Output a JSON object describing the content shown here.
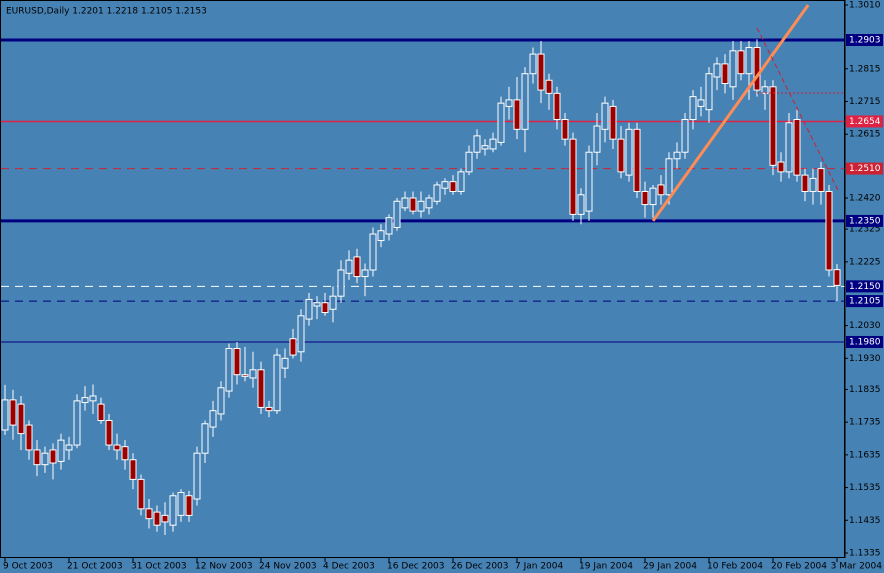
{
  "chart_data": {
    "type": "candlestick",
    "title": "EURUSD,Daily  1.2201 1.2218 1.2105 1.2153",
    "categories": [
      "9 Oct 2003",
      null,
      null,
      null,
      null,
      null,
      null,
      null,
      "21 Oct 2003",
      null,
      null,
      null,
      null,
      null,
      null,
      null,
      "31 Oct 2003",
      null,
      null,
      null,
      null,
      null,
      null,
      null,
      "12 Nov 2003",
      null,
      null,
      null,
      null,
      null,
      null,
      null,
      "24 Nov 2003",
      null,
      null,
      null,
      null,
      null,
      null,
      null,
      "4 Dec 2003",
      null,
      null,
      null,
      null,
      null,
      null,
      null,
      "16 Dec 2003",
      null,
      null,
      null,
      null,
      null,
      null,
      null,
      "26 Dec 2003",
      null,
      null,
      null,
      null,
      null,
      null,
      null,
      "7 Jan 2004",
      null,
      null,
      null,
      null,
      null,
      null,
      null,
      "19 Jan 2004",
      null,
      null,
      null,
      null,
      null,
      null,
      null,
      "29 Jan 2004",
      null,
      null,
      null,
      null,
      null,
      null,
      null,
      "10 Feb 2004",
      null,
      null,
      null,
      null,
      null,
      null,
      null,
      "20 Feb 2004",
      null,
      null,
      null,
      null,
      null,
      null,
      null,
      "3 Mar 2004"
    ],
    "open": [
      1.1711,
      1.1803,
      1.179,
      1.1726,
      1.165,
      1.1605,
      1.165,
      1.1615,
      1.165,
      1.1665,
      1.1795,
      1.18,
      1.179,
      1.174,
      1.1665,
      1.166,
      1.162,
      1.156,
      1.147,
      1.146,
      1.145,
      1.142,
      1.145,
      1.151,
      1.15,
      1.164,
      1.172,
      1.176,
      1.183,
      1.196,
      1.188,
      1.187,
      1.1895,
      1.178,
      1.177,
      1.19,
      1.199,
      1.195,
      1.205,
      1.209,
      1.21,
      1.208,
      1.212,
      1.219,
      1.224,
      1.218,
      1.22,
      1.229,
      1.231,
      1.233,
      1.239,
      1.242,
      1.238,
      1.239,
      1.241,
      1.245,
      1.247,
      1.244,
      1.25,
      1.256,
      1.257,
      1.257,
      1.259,
      1.27,
      1.272,
      1.263,
      1.28,
      1.286,
      1.278,
      1.274,
      1.266,
      1.26,
      1.237,
      1.238,
      1.256,
      1.263,
      1.27,
      1.26,
      1.249,
      1.263,
      1.244,
      1.24,
      1.246,
      1.243,
      1.254,
      1.256,
      1.266,
      1.27,
      1.269,
      1.279,
      1.283,
      1.276,
      1.287,
      1.28,
      1.288,
      1.274,
      1.276,
      1.253,
      1.25,
      1.266,
      1.249,
      1.244,
      1.251,
      1.244,
      1.2201
    ],
    "high": [
      1.1849,
      1.1834,
      1.1815,
      1.174,
      1.168,
      1.166,
      1.167,
      1.17,
      1.169,
      1.182,
      1.1845,
      1.185,
      1.181,
      1.176,
      1.17,
      1.168,
      1.164,
      1.1575,
      1.15,
      1.148,
      1.149,
      1.152,
      1.153,
      1.1525,
      1.166,
      1.174,
      1.18,
      1.186,
      1.1975,
      1.198,
      1.1965,
      1.195,
      1.192,
      1.18,
      1.196,
      1.196,
      1.202,
      1.208,
      1.213,
      1.212,
      1.213,
      1.215,
      1.223,
      1.226,
      1.2265,
      1.222,
      1.233,
      1.234,
      1.237,
      1.242,
      1.244,
      1.244,
      1.244,
      1.243,
      1.247,
      1.248,
      1.249,
      1.251,
      1.258,
      1.263,
      1.26,
      1.262,
      1.273,
      1.276,
      1.279,
      1.282,
      1.288,
      1.29,
      1.28,
      1.276,
      1.268,
      1.262,
      1.245,
      1.258,
      1.268,
      1.273,
      1.272,
      1.264,
      1.265,
      1.265,
      1.247,
      1.246,
      1.249,
      1.256,
      1.259,
      1.268,
      1.275,
      1.276,
      1.282,
      1.285,
      1.286,
      1.29,
      1.29,
      1.29,
      1.2905,
      1.278,
      1.278,
      1.256,
      1.268,
      1.269,
      1.251,
      1.251,
      1.253,
      1.246,
      1.2218
    ],
    "low": [
      1.1696,
      1.1681,
      1.165,
      1.162,
      1.157,
      1.158,
      1.156,
      1.159,
      1.162,
      1.1655,
      1.177,
      1.176,
      1.173,
      1.165,
      1.162,
      1.159,
      1.153,
      1.145,
      1.141,
      1.14,
      1.139,
      1.14,
      1.143,
      1.143,
      1.148,
      1.161,
      1.169,
      1.174,
      1.181,
      1.185,
      1.186,
      1.184,
      1.176,
      1.175,
      1.176,
      1.187,
      1.193,
      1.192,
      1.203,
      1.205,
      1.206,
      1.204,
      1.21,
      1.217,
      1.216,
      1.212,
      1.218,
      1.227,
      1.229,
      1.232,
      1.238,
      1.237,
      1.236,
      1.237,
      1.24,
      1.243,
      1.243,
      1.243,
      1.249,
      1.254,
      1.255,
      1.256,
      1.258,
      1.266,
      1.26,
      1.256,
      1.277,
      1.271,
      1.269,
      1.263,
      1.258,
      1.235,
      1.234,
      1.235,
      1.252,
      1.259,
      1.257,
      1.248,
      1.247,
      1.242,
      1.236,
      1.236,
      1.24,
      1.24,
      1.251,
      1.254,
      1.263,
      1.267,
      1.265,
      1.275,
      1.274,
      1.272,
      1.278,
      1.272,
      1.273,
      1.269,
      1.249,
      1.247,
      1.248,
      1.247,
      1.241,
      1.24,
      1.24,
      1.218,
      1.2105
    ],
    "close": [
      1.1803,
      1.1726,
      1.17,
      1.165,
      1.1605,
      1.164,
      1.161,
      1.168,
      1.1665,
      1.18,
      1.181,
      1.1815,
      1.174,
      1.1665,
      1.165,
      1.162,
      1.156,
      1.147,
      1.144,
      1.142,
      1.143,
      1.151,
      1.152,
      1.145,
      1.164,
      1.173,
      1.177,
      1.184,
      1.196,
      1.188,
      1.1875,
      1.1895,
      1.178,
      1.177,
      1.194,
      1.193,
      1.194,
      1.206,
      1.211,
      1.21,
      1.207,
      1.212,
      1.22,
      1.223,
      1.218,
      1.22,
      1.231,
      1.232,
      1.236,
      1.241,
      1.242,
      1.238,
      1.241,
      1.242,
      1.246,
      1.247,
      1.244,
      1.25,
      1.256,
      1.261,
      1.258,
      1.26,
      1.271,
      1.272,
      1.263,
      1.28,
      1.286,
      1.275,
      1.274,
      1.266,
      1.26,
      1.237,
      1.243,
      1.256,
      1.264,
      1.271,
      1.26,
      1.25,
      1.263,
      1.244,
      1.24,
      1.245,
      1.243,
      1.254,
      1.256,
      1.266,
      1.273,
      1.272,
      1.28,
      1.283,
      1.277,
      1.287,
      1.28,
      1.288,
      1.275,
      1.276,
      1.252,
      1.25,
      1.265,
      1.249,
      1.244,
      1.248,
      1.244,
      1.22,
      1.2153
    ],
    "up_color": "#ffffff",
    "down_color": "#990000",
    "ylim": [
      1.1335,
      1.301
    ],
    "yticks": [
      {
        "value": 1.301,
        "label": "1.3010"
      },
      {
        "value": 1.2815,
        "label": "1.2815"
      },
      {
        "value": 1.2715,
        "label": "1.2715"
      },
      {
        "value": 1.2615,
        "label": "1.2615"
      },
      {
        "value": 1.242,
        "label": "1.2420"
      },
      {
        "value": 1.2325,
        "label": "1.2325"
      },
      {
        "value": 1.2225,
        "label": "1.2225"
      },
      {
        "value": 1.203,
        "label": "1.2030"
      },
      {
        "value": 1.193,
        "label": "1.1930"
      },
      {
        "value": 1.1835,
        "label": "1.1835"
      },
      {
        "value": 1.1735,
        "label": "1.1735"
      },
      {
        "value": 1.1635,
        "label": "1.1635"
      },
      {
        "value": 1.1535,
        "label": "1.1535"
      },
      {
        "value": 1.1435,
        "label": "1.1435"
      },
      {
        "value": 1.1335,
        "label": "1.1335"
      }
    ],
    "levels": [
      {
        "value": 1.2903,
        "label": "1.2903",
        "color": "#000080",
        "width": 3,
        "dash": "none"
      },
      {
        "value": 1.2654,
        "label": "1.2654",
        "color": "#dd2244",
        "width": 1.5,
        "dash": "none"
      },
      {
        "value": 1.251,
        "label": "1.2510",
        "color": "#cc2233",
        "width": 1,
        "dash": "8 6"
      },
      {
        "value": 1.235,
        "label": "1.2350",
        "color": "#000080",
        "width": 3,
        "dash": "none"
      },
      {
        "value": 1.215,
        "label": "1.2150",
        "color": "#ffffff",
        "width": 1,
        "dash": "8 6"
      },
      {
        "value": 1.2105,
        "label": "1.2105",
        "color": "#000080",
        "width": 1,
        "dash": "8 6"
      },
      {
        "value": 1.198,
        "label": "1.1980",
        "color": "#000080",
        "width": 1,
        "dash": "none"
      }
    ],
    "trendlines": [
      {
        "x": [
          81,
          100.4
        ],
        "y": [
          1.235,
          1.301
        ],
        "color": "#ff8c55",
        "width": 3,
        "dash": "none"
      },
      {
        "x": [
          94,
          104.1
        ],
        "y": [
          1.294,
          1.2445
        ],
        "color": "#cc2233",
        "width": 1,
        "dash": "5 3"
      },
      {
        "x": [
          94,
          105
        ],
        "y": [
          1.2741,
          1.2741
        ],
        "color": "#cc2233",
        "width": 1,
        "dash": "2 2"
      }
    ]
  }
}
